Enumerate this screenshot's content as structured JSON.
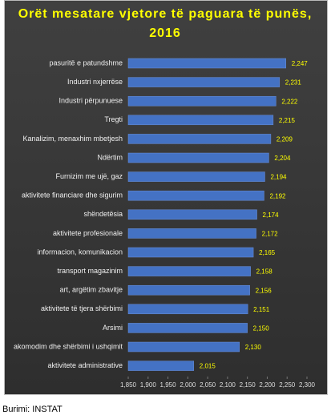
{
  "chart_data": {
    "type": "hbar",
    "title": "Orët mesatare vjetore të paguara të punës, 2016",
    "categories": [
      "pasuritë e patundshme",
      "Industri nxjerrëse",
      "Industri përpunuese",
      "Tregti",
      "Kanalizim, menaxhim mbetjesh",
      "Ndërtim",
      "Furnizim me ujë, gaz",
      "aktivitete financiare dhe sigurim",
      "shëndetësia",
      "aktivitete profesionale",
      "informacion, komunikacion",
      "transport magazinim",
      "art, argëtim zbavitje",
      "aktivitete të tjera shërbimi",
      "Arsimi",
      "akomodim dhe shërbimi i ushqimit",
      "aktivitete administrative"
    ],
    "values": [
      2247,
      2231,
      2222,
      2215,
      2209,
      2204,
      2194,
      2192,
      2174,
      2172,
      2165,
      2158,
      2156,
      2151,
      2150,
      2130,
      2015
    ],
    "value_labels": [
      "2,247",
      "2,231",
      "2,222",
      "2,215",
      "2,209",
      "2,204",
      "2,194",
      "2,192",
      "2,174",
      "2,172",
      "2,165",
      "2,158",
      "2,156",
      "2,151",
      "2,150",
      "2,130",
      "2,015"
    ],
    "color": "#4472c4",
    "xlim": [
      1850,
      2300
    ],
    "xticks": [
      {
        "value": 1850,
        "label": "1,850"
      },
      {
        "value": 1900,
        "label": "1,900"
      },
      {
        "value": 1950,
        "label": "1,950"
      },
      {
        "value": 2000,
        "label": "2,000"
      },
      {
        "value": 2050,
        "label": "2,050"
      },
      {
        "value": 2100,
        "label": "2,100"
      },
      {
        "value": 2150,
        "label": "2,150"
      },
      {
        "value": 2200,
        "label": "2,200"
      },
      {
        "value": 2250,
        "label": "2,250"
      },
      {
        "value": 2300,
        "label": "2,300"
      }
    ],
    "grid": false,
    "source": "Burimi: INSTAT"
  }
}
